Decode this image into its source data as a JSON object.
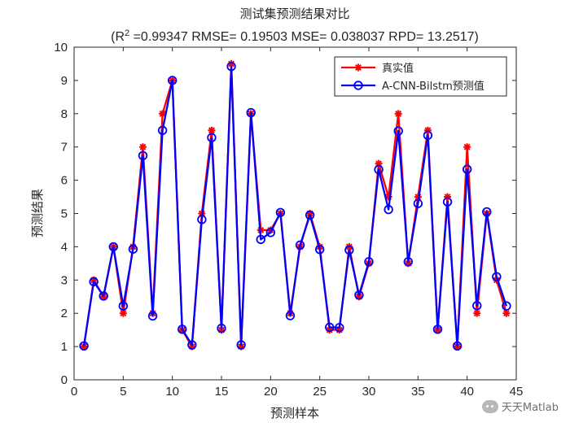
{
  "chart_data": {
    "type": "line",
    "title": "测试集预测结果对比",
    "subtitle": {
      "r2_label": "(R",
      "r2_sup": "2",
      "rest": " =0.99347 RMSE= 0.19503 MSE= 0.038037 RPD= 13.2517)"
    },
    "xlabel": "预测样本",
    "ylabel": "预测结果",
    "xlim": [
      0,
      45
    ],
    "ylim": [
      0,
      10
    ],
    "xticks": [
      0,
      5,
      10,
      15,
      20,
      25,
      30,
      35,
      40,
      45
    ],
    "yticks": [
      0,
      1,
      2,
      3,
      4,
      5,
      6,
      7,
      8,
      9,
      10
    ],
    "grid": false,
    "legend_position": "top-right",
    "x": [
      1,
      2,
      3,
      4,
      5,
      6,
      7,
      8,
      9,
      10,
      11,
      12,
      13,
      14,
      15,
      16,
      17,
      18,
      19,
      20,
      21,
      22,
      23,
      24,
      25,
      26,
      27,
      28,
      29,
      30,
      31,
      32,
      33,
      34,
      35,
      36,
      37,
      38,
      39,
      40,
      41,
      42,
      43,
      44
    ],
    "series": [
      {
        "name": "真实值",
        "color": "#ff0000",
        "marker": "asterisk",
        "values": [
          1.0,
          3.0,
          2.5,
          4.0,
          2.0,
          4.0,
          7.0,
          2.0,
          8.0,
          9.0,
          1.5,
          1.0,
          5.0,
          7.5,
          1.5,
          9.5,
          1.0,
          8.0,
          4.5,
          4.5,
          5.0,
          2.0,
          4.0,
          5.0,
          4.0,
          1.5,
          1.5,
          4.0,
          2.5,
          3.5,
          6.5,
          5.5,
          8.0,
          3.5,
          5.5,
          7.5,
          1.5,
          5.5,
          1.0,
          7.0,
          2.0,
          5.0,
          3.0,
          2.0
        ]
      },
      {
        "name": "A-CNN-Bilstm预测值",
        "color": "#0000ff",
        "marker": "circle",
        "values": [
          1.02,
          2.95,
          2.52,
          4.0,
          2.22,
          3.93,
          6.74,
          1.92,
          7.5,
          9.0,
          1.52,
          1.05,
          4.82,
          7.28,
          1.55,
          9.42,
          1.05,
          8.03,
          4.22,
          4.43,
          5.03,
          1.93,
          4.05,
          4.95,
          3.92,
          1.58,
          1.57,
          3.9,
          2.55,
          3.55,
          6.32,
          5.12,
          7.48,
          3.55,
          5.3,
          7.35,
          1.52,
          5.35,
          1.02,
          6.33,
          2.23,
          5.05,
          3.1,
          2.22
        ]
      }
    ]
  },
  "watermark": {
    "icon": "wechat-icon",
    "text": "天天Matlab"
  }
}
